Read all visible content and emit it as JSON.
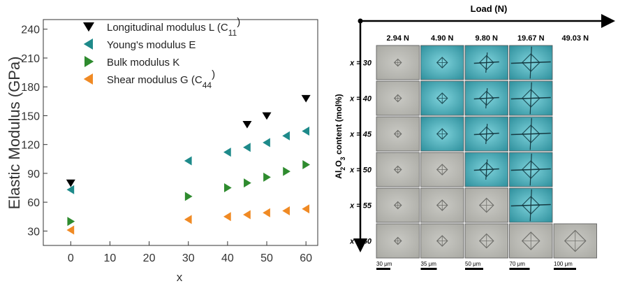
{
  "chart_data": {
    "type": "scatter",
    "xlabel": "x",
    "ylabel": "Elastic Modulus  (GPa)",
    "xlim": [
      -7,
      63
    ],
    "ylim": [
      15,
      250
    ],
    "xticks": [
      0,
      10,
      20,
      30,
      40,
      50,
      60
    ],
    "yticks": [
      30,
      60,
      90,
      120,
      150,
      180,
      210,
      240
    ],
    "legend_position": "top-left",
    "series": [
      {
        "name": "Longitudinal modulus L (C11)",
        "legend_main": "Longitudinal modulus L (C",
        "legend_sub": "11",
        "legend_end": ")",
        "marker": "triangle-down",
        "color": "#000000",
        "x": [
          0,
          45,
          50,
          60
        ],
        "y": [
          80,
          141,
          150,
          168
        ]
      },
      {
        "name": "Young's modulus E",
        "legend_main": "Young's modulus E",
        "legend_sub": "",
        "legend_end": "",
        "marker": "triangle-left",
        "color": "#1e8a8a",
        "x": [
          0,
          30,
          40,
          45,
          50,
          55,
          60
        ],
        "y": [
          73,
          103,
          112,
          117,
          122,
          129,
          134
        ]
      },
      {
        "name": "Bulk modulus K",
        "legend_main": "Bulk modulus K",
        "legend_sub": "",
        "legend_end": "",
        "marker": "triangle-right",
        "color": "#2e8b2e",
        "x": [
          0,
          30,
          40,
          45,
          50,
          55,
          60
        ],
        "y": [
          40,
          66,
          75,
          80,
          86,
          92,
          99
        ]
      },
      {
        "name": "Shear modulus G (C44)",
        "legend_main": "Shear modulus G (C",
        "legend_sub": "44",
        "legend_end": ")",
        "marker": "triangle-left",
        "color": "#f08a24",
        "x": [
          0,
          30,
          40,
          45,
          50,
          55,
          60
        ],
        "y": [
          31,
          42,
          45,
          47,
          49,
          51,
          53
        ]
      }
    ]
  },
  "image_grid": {
    "top_axis_label": "Load (N)",
    "side_axis_label_main": "Al",
    "side_axis_label_sub1": "2",
    "side_axis_label_mid": "O",
    "side_axis_label_sub2": "3",
    "side_axis_label_end": " content (mol%)",
    "columns": [
      "2.94 N",
      "4.90 N",
      "9.80 N",
      "19.67 N",
      "49.03 N"
    ],
    "rows": [
      "x = 30",
      "x = 40",
      "x = 45",
      "x = 50",
      "x = 55",
      "x = 60"
    ],
    "scale_bars": [
      "30 μm",
      "35 μm",
      "50 μm",
      "70 μm",
      "100 μm"
    ],
    "cells": [
      [
        "gray",
        "cyan",
        "cyan",
        "cyan",
        "none"
      ],
      [
        "gray",
        "cyan",
        "cyan",
        "cyan",
        "none"
      ],
      [
        "gray",
        "cyan",
        "cyan",
        "cyan",
        "none"
      ],
      [
        "gray",
        "gray",
        "cyan",
        "cyan",
        "none"
      ],
      [
        "gray",
        "gray",
        "gray",
        "cyan",
        "none"
      ],
      [
        "gray",
        "gray",
        "gray",
        "gray",
        "gray"
      ]
    ]
  }
}
